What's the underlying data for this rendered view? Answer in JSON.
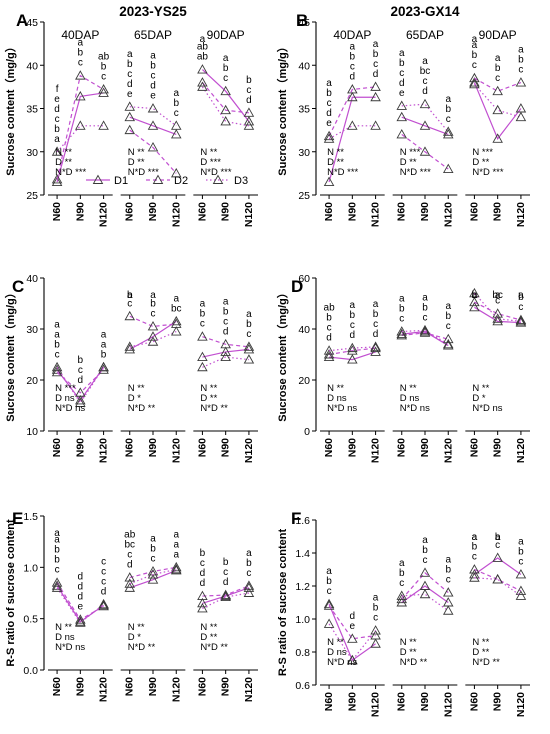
{
  "figure": {
    "colors": {
      "D1": "#c14fd0",
      "D2": "#c14fd0",
      "D3": "#c14fd0",
      "axis": "#000000",
      "marker": "#3a3a3a"
    },
    "legend": {
      "labels": [
        "D1",
        "D2",
        "D3"
      ],
      "placement": "inside-bottom of panel A"
    }
  },
  "chart_data": [
    {
      "panel": "A",
      "type": "line",
      "title": "2023-YS25",
      "ylabel": "Sucrose content（mg/g）",
      "xlabel": "",
      "ylim": [
        25,
        45
      ],
      "yticks": [
        25,
        30,
        35,
        40,
        45
      ],
      "groups": [
        "40DAP",
        "65DAP",
        "90DAP"
      ],
      "categories": [
        "N60",
        "N90",
        "N120"
      ],
      "series": [
        {
          "name": "D1",
          "values": [
            [
              26.5,
              36.4,
              36.8
            ],
            [
              34.0,
              33.0,
              32.0
            ],
            [
              39.5,
              37.0,
              33.5
            ]
          ]
        },
        {
          "name": "D2",
          "values": [
            [
              26.8,
              38.8,
              37.2
            ],
            [
              32.5,
              30.5,
              27.5
            ],
            [
              38.0,
              34.8,
              34.5
            ]
          ]
        },
        {
          "name": "D3",
          "values": [
            [
              30.0,
              33.0,
              33.0
            ],
            [
              35.2,
              35.0,
              33.0
            ],
            [
              37.5,
              33.5,
              33.0
            ]
          ]
        }
      ],
      "letters": [
        [
          "f e d c b a",
          "a b c",
          "ab b c"
        ],
        [
          "a b c d e",
          "a b c d e",
          "a b c"
        ],
        [
          "a ab ab",
          "a b c",
          "b c d"
        ]
      ],
      "stats": [
        [
          "N **",
          "D **",
          "N*D ***"
        ],
        [
          "N **",
          "D **",
          "N*D ***"
        ],
        [
          "N **",
          "D ***",
          "N*D ***"
        ]
      ]
    },
    {
      "panel": "B",
      "type": "line",
      "title": "2023-GX14",
      "ylabel": "Sucrose content（mg/g）",
      "xlabel": "",
      "ylim": [
        25,
        45
      ],
      "yticks": [
        25,
        30,
        35,
        40,
        45
      ],
      "groups": [
        "40DAP",
        "65DAP",
        "90DAP"
      ],
      "categories": [
        "N60",
        "N90",
        "N120"
      ],
      "series": [
        {
          "name": "D1",
          "values": [
            [
              26.5,
              36.3,
              36.3
            ],
            [
              34.0,
              33.0,
              32.0
            ],
            [
              38.0,
              31.5,
              35.0
            ]
          ]
        },
        {
          "name": "D2",
          "values": [
            [
              31.8,
              37.2,
              37.5
            ],
            [
              32.0,
              30.0,
              28.0
            ],
            [
              38.5,
              37.0,
              38.0
            ]
          ]
        },
        {
          "name": "D3",
          "values": [
            [
              31.5,
              33.0,
              33.0
            ],
            [
              35.3,
              35.5,
              32.3
            ],
            [
              37.8,
              34.8,
              34.0
            ]
          ]
        }
      ],
      "letters": [
        [
          "a b c d e",
          "a b c d",
          "a b c d"
        ],
        [
          "a b c d e",
          "a bc c d",
          "a b c"
        ],
        [
          "a a b c",
          "a b c",
          "a b c"
        ]
      ],
      "stats": [
        [
          "N **",
          "D **",
          "N*D ***"
        ],
        [
          "N ***",
          "D **",
          "N*D ***"
        ],
        [
          "N ***",
          "D **",
          "N*D ***"
        ]
      ]
    },
    {
      "panel": "C",
      "type": "line",
      "ylabel": "Sucrose content（mg/g）",
      "xlabel": "",
      "ylim": [
        10,
        40
      ],
      "yticks": [
        10,
        20,
        30,
        40
      ],
      "groups": [
        "",
        "",
        ""
      ],
      "categories": [
        "N60",
        "N90",
        "N120"
      ],
      "series": [
        {
          "name": "D1",
          "values": [
            [
              22.0,
              16.0,
              22.5
            ],
            [
              26.0,
              28.5,
              31.5
            ],
            [
              24.5,
              25.5,
              26.0
            ]
          ]
        },
        {
          "name": "D2",
          "values": [
            [
              21.5,
              17.5,
              22.0
            ],
            [
              32.5,
              30.5,
              31.0
            ],
            [
              28.5,
              27.0,
              26.5
            ]
          ]
        },
        {
          "name": "D3",
          "values": [
            [
              22.5,
              15.5,
              22.5
            ],
            [
              26.5,
              27.5,
              29.5
            ],
            [
              22.5,
              24.5,
              24.0
            ]
          ]
        }
      ],
      "letters": [
        [
          "a a b c",
          "b c d",
          "a a b"
        ],
        [
          "a b c",
          "a b c",
          "a bc"
        ],
        [
          "a b c",
          "a b c d",
          "a b c"
        ]
      ],
      "stats": [
        [
          "N ***",
          "D ns",
          "N*D ns"
        ],
        [
          "N **",
          "D *",
          "N*D **"
        ],
        [
          "N **",
          "D **",
          "N*D **"
        ]
      ]
    },
    {
      "panel": "D",
      "type": "line",
      "ylabel": "Sucrose content（mg/g）",
      "xlabel": "",
      "ylim": [
        0,
        60
      ],
      "yticks": [
        0,
        20,
        40,
        60
      ],
      "groups": [
        "",
        "",
        ""
      ],
      "categories": [
        "N60",
        "N90",
        "N120"
      ],
      "series": [
        {
          "name": "D1",
          "values": [
            [
              29.0,
              28.0,
              31.0
            ],
            [
              38.0,
              39.0,
              33.5
            ],
            [
              48.5,
              43.0,
              42.5
            ]
          ]
        },
        {
          "name": "D2",
          "values": [
            [
              30.0,
              31.5,
              32.5
            ],
            [
              37.5,
              38.5,
              36.0
            ],
            [
              50.5,
              46.0,
              43.5
            ]
          ]
        },
        {
          "name": "D3",
          "values": [
            [
              31.5,
              32.5,
              33.0
            ],
            [
              39.0,
              39.5,
              34.0
            ],
            [
              54.0,
              44.0,
              43.0
            ]
          ]
        }
      ],
      "letters": [
        [
          "ab b c d",
          "a b c d",
          "a b c d"
        ],
        [
          "a b c",
          "a b c",
          "a b c"
        ],
        [
          "a b c",
          "a bc c",
          "a b c"
        ]
      ],
      "stats": [
        [
          "N **",
          "D ns",
          "N*D ns"
        ],
        [
          "N **",
          "D ns",
          "N*D ns"
        ],
        [
          "N **",
          "D *",
          "N*D ns"
        ]
      ]
    },
    {
      "panel": "E",
      "type": "line",
      "ylabel": "R-S ratio of sucrose content",
      "xlabel": "",
      "ylim": [
        0.0,
        1.5
      ],
      "yticks": [
        0.0,
        0.5,
        1.0,
        1.5
      ],
      "groups": [
        "",
        "",
        ""
      ],
      "categories": [
        "N60",
        "N90",
        "N120"
      ],
      "series": [
        {
          "name": "D1",
          "values": [
            [
              0.82,
              0.47,
              0.63
            ],
            [
              0.8,
              0.88,
              0.97
            ],
            [
              0.65,
              0.72,
              0.8
            ]
          ]
        },
        {
          "name": "D2",
          "values": [
            [
              0.85,
              0.49,
              0.62
            ],
            [
              0.9,
              0.96,
              1.0
            ],
            [
              0.72,
              0.73,
              0.82
            ]
          ]
        },
        {
          "name": "D3",
          "values": [
            [
              0.8,
              0.46,
              0.64
            ],
            [
              0.84,
              0.93,
              0.98
            ],
            [
              0.6,
              0.71,
              0.75
            ]
          ]
        }
      ],
      "letters": [
        [
          "a a b b c",
          "d d d e",
          "c c c d"
        ],
        [
          "ab bc c d",
          "a b c",
          "a a a"
        ],
        [
          "b c d d",
          "b c d",
          "a b c"
        ]
      ],
      "stats": [
        [
          "N **",
          "D ns",
          "N*D ns"
        ],
        [
          "N **",
          "D *",
          "N*D **"
        ],
        [
          "N **",
          "D **",
          "N*D **"
        ]
      ]
    },
    {
      "panel": "F",
      "type": "line",
      "ylabel": "R-S ratio of sucrose content",
      "xlabel": "",
      "ylim": [
        0.6,
        1.6
      ],
      "yticks": [
        0.6,
        0.8,
        1.0,
        1.2,
        1.4,
        1.6
      ],
      "groups": [
        "",
        "",
        ""
      ],
      "categories": [
        "N60",
        "N90",
        "N120"
      ],
      "series": [
        {
          "name": "D1",
          "values": [
            [
              1.09,
              0.75,
              0.85
            ],
            [
              1.1,
              1.2,
              1.1
            ],
            [
              1.27,
              1.37,
              1.27
            ]
          ]
        },
        {
          "name": "D2",
          "values": [
            [
              1.08,
              0.88,
              0.9
            ],
            [
              1.12,
              1.28,
              1.16
            ],
            [
              1.3,
              1.24,
              1.17
            ]
          ]
        },
        {
          "name": "D3",
          "values": [
            [
              0.97,
              0.75,
              0.93
            ],
            [
              1.14,
              1.15,
              1.05
            ],
            [
              1.25,
              1.24,
              1.14
            ]
          ]
        }
      ],
      "letters": [
        [
          "a b c",
          "d e",
          "a b c"
        ],
        [
          "a b c",
          "a b c",
          "a b c"
        ],
        [
          "a a b c",
          "a b c",
          "a b c"
        ]
      ],
      "stats": [
        [
          "N **",
          "D ns",
          "N*D ns"
        ],
        [
          "N **",
          "D **",
          "N*D **"
        ],
        [
          "N **",
          "D **",
          "N*D **"
        ]
      ]
    }
  ]
}
